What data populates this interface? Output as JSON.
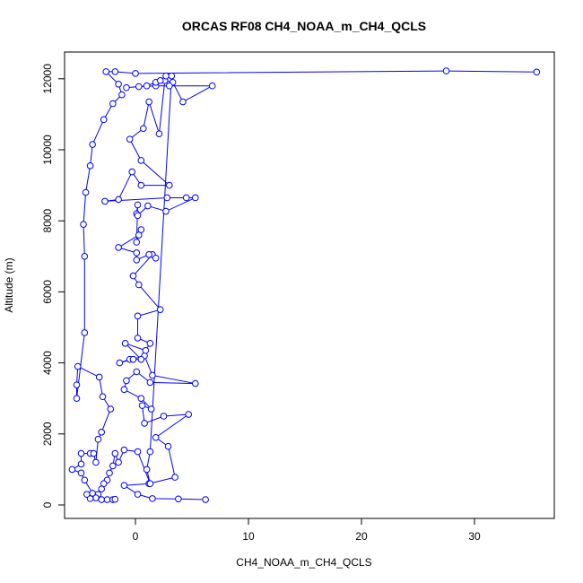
{
  "chart_data": {
    "type": "line",
    "title": "ORCAS RF08 CH4_NOAA_m_CH4_QCLS",
    "x_label": "CH4_NOAA_m_CH4_QCLS",
    "y_label": "Altitude (m)",
    "color": "#0000ff",
    "xlim": [
      -6.27,
      37.06
    ],
    "ylim": [
      -379,
      12753
    ],
    "xticks": [
      0,
      10,
      20,
      30
    ],
    "yticks": [
      0,
      2000,
      4000,
      6000,
      8000,
      10000,
      12000
    ],
    "x": [
      6.2,
      3.8,
      1.5,
      0.2,
      -1,
      1.2,
      3.5,
      2.9,
      1.8,
      4.7,
      2.5,
      0.8,
      0.6,
      1.4,
      0.5,
      -1,
      -0.8,
      0.1,
      1.3,
      5.3,
      1.5,
      0.8,
      -1.4,
      -0.5,
      -0.2,
      0.5,
      -0.9,
      0.9,
      1.3,
      0.2,
      0.2,
      2.2,
      0.3,
      -0.2,
      1.5,
      1.8,
      1.2,
      0.1,
      0.1,
      -1.5,
      0.3,
      0.5,
      0.1,
      0.2,
      0.1,
      0.2,
      1.1,
      2.7,
      5.3,
      4.5,
      2.8,
      -2.7,
      -1.5,
      -0.3,
      0.5,
      3,
      0.5,
      -0.5,
      0.7,
      1.2,
      2.1,
      2.6,
      3.3,
      4.2,
      6.8,
      3,
      1.8,
      0.3,
      -0.8,
      1,
      1.8,
      2.2,
      2.7,
      3.2,
      1.3,
      1,
      1.3,
      0.2,
      -1,
      -1.5,
      -1.8,
      -2,
      -2.3,
      -2.5,
      -2.8,
      -3,
      -3.3,
      -3.5,
      -3,
      -2.5,
      -2,
      -1.8,
      -4,
      -4,
      -4.3,
      -3.8,
      -4.5,
      -4.8,
      -5.6,
      -4.8,
      -4.8,
      -4,
      -3.7,
      -3.5,
      -3.3,
      -3,
      -2.2,
      -2.9,
      -3.2,
      -5.1,
      -5.2,
      -5.2,
      -4.5,
      -4.5,
      -4.6,
      -4.4,
      -4,
      -3.8,
      -2.8,
      -2,
      -1.2,
      -1.5,
      -2.6,
      -1.8,
      0,
      27.5,
      35.5
    ],
    "values": [
      150,
      170,
      180,
      300,
      550,
      600,
      780,
      1650,
      1900,
      2550,
      2500,
      2300,
      2800,
      2700,
      3000,
      3250,
      3500,
      3750,
      3450,
      3420,
      3650,
      4200,
      4000,
      4100,
      4100,
      4100,
      4550,
      4350,
      4550,
      4700,
      5320,
      5500,
      6200,
      6450,
      7050,
      6950,
      7050,
      6900,
      7100,
      7250,
      7600,
      7750,
      7400,
      8450,
      8200,
      8150,
      8420,
      8270,
      8650,
      8650,
      8650,
      8550,
      8600,
      9380,
      9000,
      9000,
      9700,
      10300,
      10600,
      11350,
      10450,
      11950,
      11900,
      11350,
      11800,
      11800,
      11800,
      11780,
      11750,
      11800,
      11900,
      11950,
      12080,
      12080,
      1500,
      1000,
      600,
      1500,
      1550,
      1200,
      1450,
      1100,
      900,
      700,
      600,
      450,
      300,
      200,
      150,
      150,
      150,
      160,
      200,
      180,
      300,
      330,
      700,
      900,
      1000,
      1150,
      1450,
      1450,
      1450,
      1200,
      1850,
      2050,
      2700,
      3050,
      3600,
      3900,
      3380,
      3000,
      4850,
      7000,
      7900,
      8800,
      9550,
      10150,
      10850,
      11300,
      11550,
      11850,
      12200,
      12200,
      12150,
      12220,
      12190
    ]
  }
}
